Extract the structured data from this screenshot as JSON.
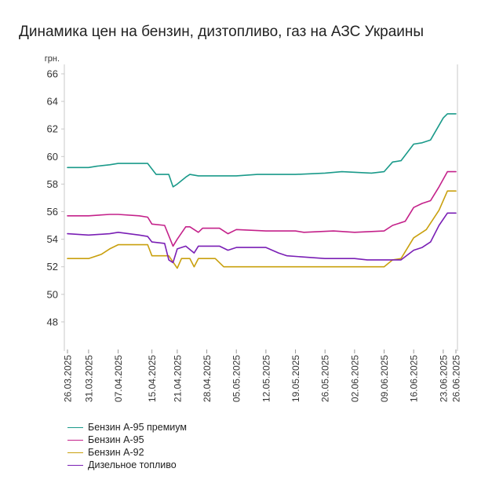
{
  "chart_data": {
    "type": "line",
    "title": "Динамика цен на бензин, дизтопливо, газ на АЗС Украины",
    "ylabel": "грн.",
    "xlabel": "",
    "ylim": [
      46,
      66
    ],
    "yticks": [
      48,
      50,
      52,
      54,
      56,
      58,
      60,
      62,
      64,
      66
    ],
    "xlim": [
      "2025-03-26",
      "2025-06-26"
    ],
    "xticks": [
      "26.03.2025",
      "31.03.2025",
      "07.04.2025",
      "15.04.2025",
      "21.04.2025",
      "28.04.2025",
      "05.05.2025",
      "12.05.2025",
      "19.05.2025",
      "26.05.2025",
      "02.06.2025",
      "09.06.2025",
      "16.06.2025",
      "23.06.2025",
      "26.06.2025"
    ],
    "grid": false,
    "legend_position": "bottom-left",
    "series": [
      {
        "name": "Бензин А-95 премиум",
        "color": "#1a9a8a",
        "points": [
          [
            "2025-03-26",
            59.2
          ],
          [
            "2025-03-31",
            59.2
          ],
          [
            "2025-04-02",
            59.3
          ],
          [
            "2025-04-05",
            59.4
          ],
          [
            "2025-04-07",
            59.5
          ],
          [
            "2025-04-14",
            59.5
          ],
          [
            "2025-04-16",
            58.7
          ],
          [
            "2025-04-19",
            58.7
          ],
          [
            "2025-04-20",
            57.8
          ],
          [
            "2025-04-21",
            58.0
          ],
          [
            "2025-04-23",
            58.5
          ],
          [
            "2025-04-24",
            58.7
          ],
          [
            "2025-04-26",
            58.6
          ],
          [
            "2025-05-05",
            58.6
          ],
          [
            "2025-05-10",
            58.7
          ],
          [
            "2025-05-12",
            58.7
          ],
          [
            "2025-05-19",
            58.7
          ],
          [
            "2025-05-26",
            58.8
          ],
          [
            "2025-05-30",
            58.9
          ],
          [
            "2025-06-06",
            58.8
          ],
          [
            "2025-06-09",
            58.9
          ],
          [
            "2025-06-11",
            59.6
          ],
          [
            "2025-06-13",
            59.7
          ],
          [
            "2025-06-16",
            60.9
          ],
          [
            "2025-06-18",
            61.0
          ],
          [
            "2025-06-20",
            61.2
          ],
          [
            "2025-06-23",
            62.8
          ],
          [
            "2025-06-24",
            63.1
          ],
          [
            "2025-06-26",
            63.1
          ]
        ]
      },
      {
        "name": "Бензин А-95",
        "color": "#c4218a",
        "points": [
          [
            "2025-03-26",
            55.7
          ],
          [
            "2025-03-31",
            55.7
          ],
          [
            "2025-04-05",
            55.8
          ],
          [
            "2025-04-07",
            55.8
          ],
          [
            "2025-04-12",
            55.7
          ],
          [
            "2025-04-14",
            55.6
          ],
          [
            "2025-04-15",
            55.1
          ],
          [
            "2025-04-18",
            55.0
          ],
          [
            "2025-04-20",
            53.5
          ],
          [
            "2025-04-21",
            54.0
          ],
          [
            "2025-04-23",
            54.9
          ],
          [
            "2025-04-24",
            54.9
          ],
          [
            "2025-04-26",
            54.5
          ],
          [
            "2025-04-27",
            54.8
          ],
          [
            "2025-05-01",
            54.8
          ],
          [
            "2025-05-03",
            54.4
          ],
          [
            "2025-05-05",
            54.7
          ],
          [
            "2025-05-12",
            54.6
          ],
          [
            "2025-05-19",
            54.6
          ],
          [
            "2025-05-21",
            54.5
          ],
          [
            "2025-05-28",
            54.6
          ],
          [
            "2025-06-02",
            54.5
          ],
          [
            "2025-06-09",
            54.6
          ],
          [
            "2025-06-11",
            55.0
          ],
          [
            "2025-06-14",
            55.3
          ],
          [
            "2025-06-16",
            56.3
          ],
          [
            "2025-06-18",
            56.6
          ],
          [
            "2025-06-20",
            56.8
          ],
          [
            "2025-06-22",
            57.8
          ],
          [
            "2025-06-24",
            58.9
          ],
          [
            "2025-06-26",
            58.9
          ]
        ]
      },
      {
        "name": "Бензин А-92",
        "color": "#c9a00e",
        "points": [
          [
            "2025-03-26",
            52.6
          ],
          [
            "2025-03-31",
            52.6
          ],
          [
            "2025-04-03",
            52.9
          ],
          [
            "2025-04-05",
            53.3
          ],
          [
            "2025-04-07",
            53.6
          ],
          [
            "2025-04-14",
            53.6
          ],
          [
            "2025-04-15",
            52.8
          ],
          [
            "2025-04-19",
            52.8
          ],
          [
            "2025-04-21",
            51.9
          ],
          [
            "2025-04-22",
            52.6
          ],
          [
            "2025-04-24",
            52.6
          ],
          [
            "2025-04-25",
            52.0
          ],
          [
            "2025-04-26",
            52.6
          ],
          [
            "2025-04-30",
            52.6
          ],
          [
            "2025-05-02",
            52.0
          ],
          [
            "2025-05-05",
            52.0
          ],
          [
            "2025-05-12",
            52.0
          ],
          [
            "2025-05-19",
            52.0
          ],
          [
            "2025-05-26",
            52.0
          ],
          [
            "2025-06-02",
            52.0
          ],
          [
            "2025-06-09",
            52.0
          ],
          [
            "2025-06-11",
            52.5
          ],
          [
            "2025-06-13",
            52.6
          ],
          [
            "2025-06-16",
            54.1
          ],
          [
            "2025-06-18",
            54.5
          ],
          [
            "2025-06-19",
            54.7
          ],
          [
            "2025-06-22",
            56.1
          ],
          [
            "2025-06-24",
            57.5
          ],
          [
            "2025-06-26",
            57.5
          ]
        ]
      },
      {
        "name": "Дизельное топливо",
        "color": "#7a1fb5",
        "points": [
          [
            "2025-03-26",
            54.4
          ],
          [
            "2025-03-31",
            54.3
          ],
          [
            "2025-04-05",
            54.4
          ],
          [
            "2025-04-07",
            54.5
          ],
          [
            "2025-04-12",
            54.3
          ],
          [
            "2025-04-14",
            54.2
          ],
          [
            "2025-04-15",
            53.8
          ],
          [
            "2025-04-18",
            53.7
          ],
          [
            "2025-04-19",
            52.5
          ],
          [
            "2025-04-20",
            52.3
          ],
          [
            "2025-04-21",
            53.3
          ],
          [
            "2025-04-23",
            53.5
          ],
          [
            "2025-04-25",
            53.0
          ],
          [
            "2025-04-26",
            53.5
          ],
          [
            "2025-05-01",
            53.5
          ],
          [
            "2025-05-03",
            53.2
          ],
          [
            "2025-05-05",
            53.4
          ],
          [
            "2025-05-12",
            53.4
          ],
          [
            "2025-05-15",
            53.0
          ],
          [
            "2025-05-17",
            52.8
          ],
          [
            "2025-05-26",
            52.6
          ],
          [
            "2025-06-02",
            52.6
          ],
          [
            "2025-06-05",
            52.5
          ],
          [
            "2025-06-13",
            52.5
          ],
          [
            "2025-06-16",
            53.2
          ],
          [
            "2025-06-18",
            53.4
          ],
          [
            "2025-06-20",
            53.8
          ],
          [
            "2025-06-22",
            55.0
          ],
          [
            "2025-06-24",
            55.9
          ],
          [
            "2025-06-26",
            55.9
          ]
        ]
      }
    ]
  }
}
